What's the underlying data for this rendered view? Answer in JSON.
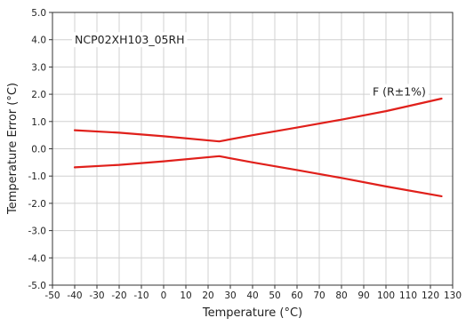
{
  "chart_data": {
    "type": "line",
    "title": "",
    "xlabel": "Temperature (°C)",
    "ylabel": "Temperature Error (°C)",
    "xlim": [
      -50,
      130
    ],
    "ylim": [
      -5.0,
      5.0
    ],
    "x_ticks": [
      -50,
      -40,
      -30,
      -20,
      -10,
      0,
      10,
      20,
      30,
      40,
      50,
      60,
      70,
      80,
      90,
      100,
      110,
      120,
      130
    ],
    "x_tick_labels": [
      "-50",
      "-40",
      "-30",
      "-20",
      "-10",
      "0",
      "10",
      "20",
      "30",
      "40",
      "50",
      "60",
      "70",
      "80",
      "90",
      "100",
      "110",
      "120",
      "130"
    ],
    "y_ticks": [
      -5.0,
      -4.0,
      -3.0,
      -2.0,
      -1.0,
      0.0,
      1.0,
      2.0,
      3.0,
      4.0,
      5.0
    ],
    "y_tick_labels": [
      "-5.0",
      "-4.0",
      "-3.0",
      "-2.0",
      "-1.0",
      "0.0",
      "1.0",
      "2.0",
      "3.0",
      "4.0",
      "5.0"
    ],
    "grid": true,
    "legend": "none",
    "line_color": "#e0201b",
    "series": [
      {
        "x": [
          -40,
          -20,
          0,
          25,
          40,
          60,
          80,
          100,
          125
        ],
        "y": [
          0.68,
          0.59,
          0.46,
          0.27,
          0.5,
          0.78,
          1.07,
          1.38,
          1.84
        ]
      },
      {
        "x": [
          -40,
          -20,
          0,
          25,
          40,
          60,
          80,
          100,
          125
        ],
        "y": [
          -0.68,
          -0.59,
          -0.46,
          -0.27,
          -0.5,
          -0.78,
          -1.07,
          -1.38,
          -1.74
        ]
      }
    ],
    "annotations": [
      {
        "text": "NCP02XH103_05RH",
        "x": -40,
        "y": 4.0
      },
      {
        "text": "F (R±1%)",
        "x": 94,
        "y": 2.1
      }
    ]
  }
}
